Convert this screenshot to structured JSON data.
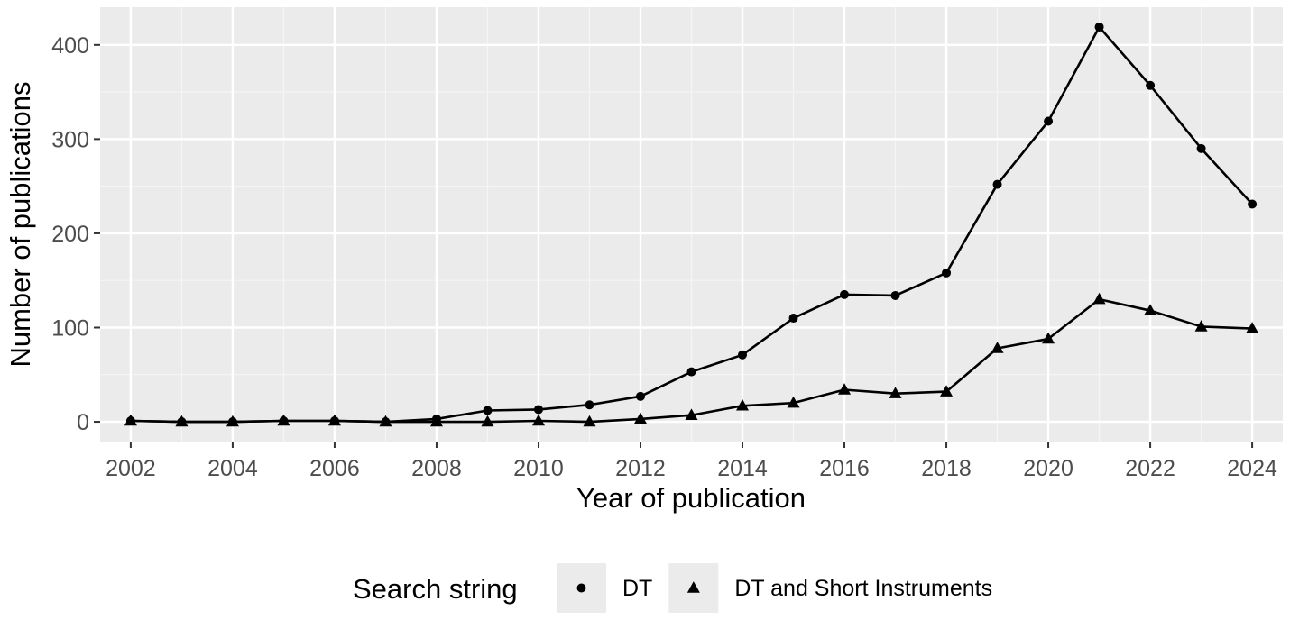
{
  "chart_data": {
    "type": "line",
    "title": "",
    "xlabel": "Year of publication",
    "ylabel": "Number of publications",
    "x": [
      2002,
      2003,
      2004,
      2005,
      2006,
      2007,
      2008,
      2009,
      2010,
      2011,
      2012,
      2013,
      2014,
      2015,
      2016,
      2017,
      2018,
      2019,
      2020,
      2021,
      2022,
      2023,
      2024
    ],
    "x_ticks": [
      2002,
      2004,
      2006,
      2008,
      2010,
      2012,
      2014,
      2016,
      2018,
      2020,
      2022,
      2024
    ],
    "y_ticks": [
      0,
      100,
      200,
      300,
      400
    ],
    "xlim": [
      2001.4,
      2024.6
    ],
    "ylim": [
      -21,
      440
    ],
    "grid": true,
    "legend": {
      "title": "Search string",
      "position": "bottom"
    },
    "series": [
      {
        "name": "DT",
        "marker": "circle",
        "values": [
          1,
          0,
          0,
          1,
          1,
          0,
          3,
          12,
          13,
          18,
          27,
          53,
          71,
          110,
          135,
          134,
          158,
          252,
          319,
          419,
          357,
          290,
          231
        ]
      },
      {
        "name": "DT and Short Instruments",
        "marker": "triangle",
        "values": [
          1,
          0,
          0,
          1,
          1,
          0,
          0,
          0,
          1,
          0,
          3,
          7,
          17,
          20,
          34,
          30,
          32,
          78,
          88,
          130,
          118,
          101,
          99
        ]
      }
    ],
    "colors": {
      "panel": "#ebebeb",
      "grid_major": "#ffffff",
      "grid_minor": "#f5f5f5",
      "line": "#000000",
      "tick_text": "#4d4d4d",
      "tick_mark": "#333333",
      "legend_key": "#ebebeb"
    }
  }
}
